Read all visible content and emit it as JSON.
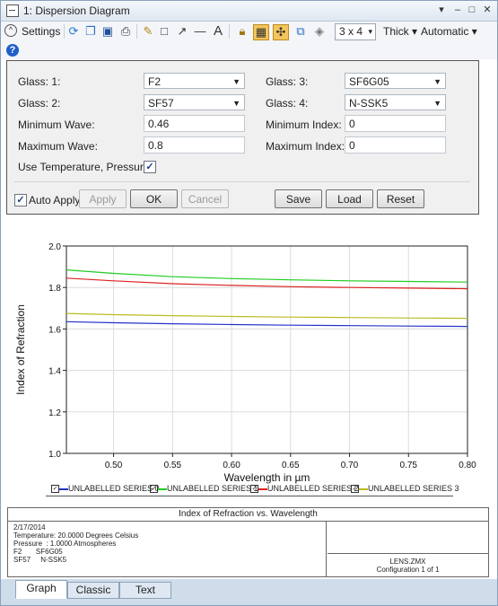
{
  "window": {
    "title": "1: Dispersion Diagram"
  },
  "toolbar": {
    "settings_label": "Settings",
    "layout_value": "3 x 4",
    "line_label": "Thick",
    "scale_label": "Automatic",
    "text_tool": "A"
  },
  "settings": {
    "glass1": {
      "label": "Glass: 1:",
      "value": "F2"
    },
    "glass2": {
      "label": "Glass: 2:",
      "value": "SF57"
    },
    "glass3": {
      "label": "Glass: 3:",
      "value": "SF6G05"
    },
    "glass4": {
      "label": "Glass: 4:",
      "value": "N-SSK5"
    },
    "min_wave": {
      "label": "Minimum Wave:",
      "value": "0.46"
    },
    "max_wave": {
      "label": "Maximum Wave:",
      "value": "0.8"
    },
    "min_index": {
      "label": "Minimum Index:",
      "value": "0"
    },
    "max_index": {
      "label": "Maximum Index:",
      "value": "0"
    },
    "use_temp": {
      "label": "Use Temperature, Pressure:",
      "checked": true
    },
    "auto_apply": {
      "label": "Auto Apply",
      "checked": true
    }
  },
  "buttons": {
    "apply": "Apply",
    "ok": "OK",
    "cancel": "Cancel",
    "save": "Save",
    "load": "Load",
    "reset": "Reset"
  },
  "chart_data": {
    "type": "line",
    "xlabel": "Wavelength in µm",
    "ylabel": "Index of Refraction",
    "xlim": [
      0.46,
      0.8
    ],
    "ylim": [
      1.0,
      2.0
    ],
    "x_ticks": [
      "0.50",
      "0.55",
      "0.60",
      "0.65",
      "0.70",
      "0.75",
      "0.80"
    ],
    "y_ticks": [
      "1.0",
      "1.2",
      "1.4",
      "1.6",
      "1.8",
      "2.0"
    ],
    "grid": true,
    "legend_position": "bottom",
    "x": [
      0.46,
      0.5,
      0.55,
      0.6,
      0.65,
      0.7,
      0.75,
      0.8
    ],
    "series": [
      {
        "name": "UNLABELLED SERIES 0",
        "color": "#2233cc",
        "values": [
          1.635,
          1.63,
          1.625,
          1.621,
          1.618,
          1.616,
          1.614,
          1.612
        ]
      },
      {
        "name": "UNLABELLED SERIES 1",
        "color": "#22cc22",
        "values": [
          1.885,
          1.868,
          1.852,
          1.843,
          1.837,
          1.832,
          1.829,
          1.826
        ]
      },
      {
        "name": "UNLABELLED SERIES 2",
        "color": "#dd2222",
        "values": [
          1.845,
          1.832,
          1.818,
          1.81,
          1.804,
          1.8,
          1.797,
          1.794
        ]
      },
      {
        "name": "UNLABELLED SERIES 3",
        "color": "#bbbb22",
        "values": [
          1.675,
          1.669,
          1.664,
          1.66,
          1.657,
          1.655,
          1.653,
          1.651
        ]
      }
    ]
  },
  "info": {
    "title": "Index of Refraction vs. Wavelength",
    "date": "2/17/2014",
    "temperature": "Temperature: 20.0000 Degrees Celsius",
    "pressure": "Pressure  : 1.0000 Atmospheres",
    "glass_row1": "F2       SF6G05",
    "glass_row2": "SF57     N-SSK5",
    "file": "LENS.ZMX",
    "config": "Configuration 1 of 1"
  },
  "tabs": [
    {
      "label": "Graph"
    },
    {
      "label": "Classic"
    },
    {
      "label": "Text"
    }
  ]
}
